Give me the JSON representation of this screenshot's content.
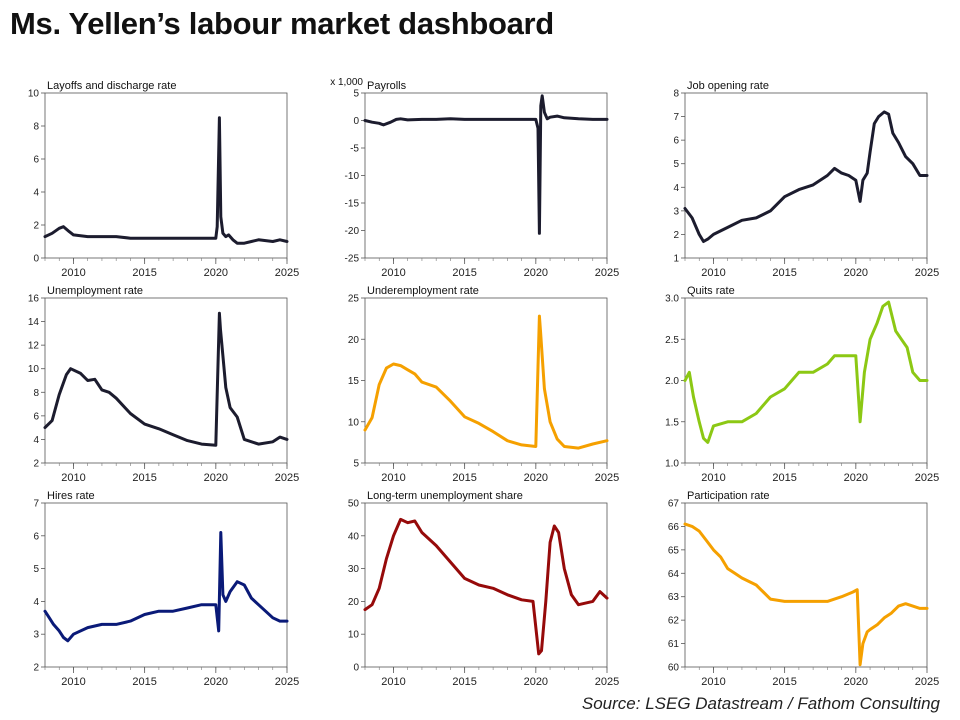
{
  "page": {
    "title": "Ms. Yellen’s labour market dashboard",
    "source": "Source: LSEG Datastream / Fathom Consulting"
  },
  "chart_data": [
    {
      "type": "line",
      "title": "Layoffs and discharge rate",
      "color": "#1c1c2e",
      "ylim": [
        0,
        10
      ],
      "yticks": [
        0,
        2,
        4,
        6,
        8,
        10
      ],
      "xlim": [
        2008.0,
        2025.0
      ],
      "xticks": [
        2010,
        2015,
        2020,
        2025
      ],
      "x": [
        2008.0,
        2008.5,
        2009.0,
        2009.3,
        2009.7,
        2010.0,
        2011.0,
        2012.0,
        2013.0,
        2014.0,
        2015.0,
        2016.0,
        2017.0,
        2018.0,
        2019.0,
        2020.0,
        2020.1,
        2020.25,
        2020.35,
        2020.5,
        2020.7,
        2020.9,
        2021.2,
        2021.5,
        2022.0,
        2022.5,
        2023.0,
        2024.0,
        2024.5,
        2025.0
      ],
      "y": [
        1.3,
        1.5,
        1.8,
        1.9,
        1.6,
        1.4,
        1.3,
        1.3,
        1.3,
        1.2,
        1.2,
        1.2,
        1.2,
        1.2,
        1.2,
        1.2,
        1.9,
        8.5,
        2.5,
        1.5,
        1.3,
        1.4,
        1.1,
        0.9,
        0.9,
        1.0,
        1.1,
        1.0,
        1.1,
        1.0
      ]
    },
    {
      "type": "line",
      "title": "Payrolls",
      "unit_label": "x 1,000",
      "color": "#1c1c2e",
      "ylim": [
        -25,
        5
      ],
      "yticks": [
        -25,
        -20,
        -15,
        -10,
        -5,
        0,
        5
      ],
      "xlim": [
        2008.0,
        2025.0
      ],
      "xticks": [
        2010,
        2015,
        2020,
        2025
      ],
      "x": [
        2008.0,
        2008.5,
        2009.0,
        2009.3,
        2009.8,
        2010.2,
        2010.5,
        2011.0,
        2012.0,
        2013.0,
        2014.0,
        2015.0,
        2016.0,
        2017.0,
        2018.0,
        2019.0,
        2020.0,
        2020.15,
        2020.25,
        2020.35,
        2020.45,
        2020.6,
        2020.8,
        2021.0,
        2021.5,
        2022.0,
        2023.0,
        2024.0,
        2025.0
      ],
      "y": [
        0.0,
        -0.3,
        -0.5,
        -0.8,
        -0.3,
        0.2,
        0.3,
        0.1,
        0.2,
        0.2,
        0.3,
        0.2,
        0.2,
        0.2,
        0.2,
        0.2,
        0.2,
        -1.4,
        -20.5,
        2.7,
        4.5,
        1.5,
        0.3,
        0.6,
        0.8,
        0.5,
        0.3,
        0.2,
        0.2
      ]
    },
    {
      "type": "line",
      "title": "Job opening rate",
      "color": "#1c1c2e",
      "ylim": [
        1,
        8
      ],
      "yticks": [
        1,
        2,
        3,
        4,
        5,
        6,
        7,
        8
      ],
      "xlim": [
        2008.0,
        2025.0
      ],
      "xticks": [
        2010,
        2015,
        2020,
        2025
      ],
      "x": [
        2008.0,
        2008.5,
        2009.0,
        2009.3,
        2009.6,
        2010.0,
        2011.0,
        2012.0,
        2013.0,
        2014.0,
        2014.5,
        2015.0,
        2016.0,
        2017.0,
        2018.0,
        2018.5,
        2019.0,
        2019.5,
        2020.0,
        2020.3,
        2020.5,
        2020.8,
        2021.0,
        2021.3,
        2021.6,
        2022.0,
        2022.3,
        2022.6,
        2023.0,
        2023.5,
        2024.0,
        2024.5,
        2025.0
      ],
      "y": [
        3.1,
        2.7,
        2.0,
        1.7,
        1.8,
        2.0,
        2.3,
        2.6,
        2.7,
        3.0,
        3.3,
        3.6,
        3.9,
        4.1,
        4.5,
        4.8,
        4.6,
        4.5,
        4.3,
        3.4,
        4.3,
        4.6,
        5.5,
        6.7,
        7.0,
        7.2,
        7.1,
        6.3,
        5.9,
        5.3,
        5.0,
        4.5,
        4.5
      ]
    },
    {
      "type": "line",
      "title": "Unemployment rate",
      "color": "#1c1c2e",
      "ylim": [
        2,
        16
      ],
      "yticks": [
        2,
        4,
        6,
        8,
        10,
        12,
        14,
        16
      ],
      "xlim": [
        2008.0,
        2025.0
      ],
      "xticks": [
        2010,
        2015,
        2020,
        2025
      ],
      "x": [
        2008.0,
        2008.5,
        2009.0,
        2009.5,
        2009.8,
        2010.5,
        2011.0,
        2011.5,
        2012.0,
        2012.5,
        2013.0,
        2014.0,
        2015.0,
        2016.0,
        2017.0,
        2018.0,
        2019.0,
        2020.0,
        2020.25,
        2020.33,
        2020.5,
        2020.7,
        2021.0,
        2021.5,
        2022.0,
        2023.0,
        2024.0,
        2024.5,
        2025.0
      ],
      "y": [
        5.0,
        5.6,
        7.8,
        9.5,
        10.0,
        9.6,
        9.0,
        9.1,
        8.2,
        8.0,
        7.5,
        6.2,
        5.3,
        4.9,
        4.4,
        3.9,
        3.6,
        3.5,
        14.7,
        13.3,
        11.1,
        8.4,
        6.7,
        5.9,
        4.0,
        3.6,
        3.8,
        4.2,
        4.0
      ]
    },
    {
      "type": "line",
      "title": "Underemployment rate",
      "color": "#f5a000",
      "ylim": [
        5,
        25
      ],
      "yticks": [
        5,
        10,
        15,
        20,
        25
      ],
      "xlim": [
        2008.0,
        2025.0
      ],
      "xticks": [
        2010,
        2015,
        2020,
        2025
      ],
      "x": [
        2008.0,
        2008.5,
        2009.0,
        2009.5,
        2010.0,
        2010.5,
        2011.0,
        2011.5,
        2012.0,
        2013.0,
        2014.0,
        2015.0,
        2016.0,
        2017.0,
        2018.0,
        2019.0,
        2020.0,
        2020.25,
        2020.33,
        2020.6,
        2021.0,
        2021.5,
        2022.0,
        2023.0,
        2024.0,
        2025.0
      ],
      "y": [
        9.0,
        10.5,
        14.5,
        16.5,
        17.0,
        16.8,
        16.3,
        15.8,
        14.8,
        14.2,
        12.5,
        10.6,
        9.8,
        8.8,
        7.7,
        7.2,
        7.0,
        22.8,
        21.0,
        14.0,
        10.0,
        7.9,
        7.0,
        6.8,
        7.3,
        7.7
      ]
    },
    {
      "type": "line",
      "title": "Quits rate",
      "color": "#8cc814",
      "ylim": [
        1.0,
        3.0
      ],
      "yticks": [
        1.0,
        1.5,
        2.0,
        2.5,
        3.0
      ],
      "xlim": [
        2008.0,
        2025.0
      ],
      "xticks": [
        2010,
        2015,
        2020,
        2025
      ],
      "x": [
        2008.0,
        2008.3,
        2008.6,
        2009.0,
        2009.3,
        2009.6,
        2010.0,
        2011.0,
        2012.0,
        2013.0,
        2014.0,
        2015.0,
        2015.5,
        2016.0,
        2017.0,
        2018.0,
        2018.5,
        2019.0,
        2020.0,
        2020.3,
        2020.6,
        2021.0,
        2021.5,
        2021.9,
        2022.3,
        2022.8,
        2023.2,
        2023.6,
        2024.0,
        2024.5,
        2025.0
      ],
      "y": [
        2.0,
        2.1,
        1.8,
        1.5,
        1.3,
        1.25,
        1.45,
        1.5,
        1.5,
        1.6,
        1.8,
        1.9,
        2.0,
        2.1,
        2.1,
        2.2,
        2.3,
        2.3,
        2.3,
        1.5,
        2.1,
        2.5,
        2.7,
        2.9,
        2.95,
        2.6,
        2.5,
        2.4,
        2.1,
        2.0,
        2.0
      ]
    },
    {
      "type": "line",
      "title": "Hires rate",
      "color": "#0a1a78",
      "ylim": [
        2,
        7
      ],
      "yticks": [
        2,
        3,
        4,
        5,
        6,
        7
      ],
      "xlim": [
        2008.0,
        2025.0
      ],
      "xticks": [
        2010,
        2015,
        2020,
        2025
      ],
      "x": [
        2008.0,
        2008.3,
        2008.6,
        2009.0,
        2009.3,
        2009.6,
        2010.0,
        2011.0,
        2012.0,
        2013.0,
        2014.0,
        2015.0,
        2016.0,
        2017.0,
        2018.0,
        2019.0,
        2020.0,
        2020.2,
        2020.35,
        2020.5,
        2020.7,
        2021.0,
        2021.5,
        2022.0,
        2022.5,
        2023.0,
        2023.5,
        2024.0,
        2024.5,
        2025.0
      ],
      "y": [
        3.7,
        3.5,
        3.3,
        3.1,
        2.9,
        2.8,
        3.0,
        3.2,
        3.3,
        3.3,
        3.4,
        3.6,
        3.7,
        3.7,
        3.8,
        3.9,
        3.9,
        3.1,
        6.1,
        4.2,
        4.0,
        4.3,
        4.6,
        4.5,
        4.1,
        3.9,
        3.7,
        3.5,
        3.4,
        3.4
      ]
    },
    {
      "type": "line",
      "title": "Long-term unemployment share",
      "color": "#960a0a",
      "ylim": [
        0,
        50
      ],
      "yticks": [
        0,
        10,
        20,
        30,
        40,
        50
      ],
      "xlim": [
        2008.0,
        2025.0
      ],
      "xticks": [
        2010,
        2015,
        2020,
        2025
      ],
      "x": [
        2008.0,
        2008.5,
        2009.0,
        2009.5,
        2010.0,
        2010.5,
        2011.0,
        2011.5,
        2012.0,
        2013.0,
        2014.0,
        2015.0,
        2016.0,
        2017.0,
        2018.0,
        2019.0,
        2019.8,
        2020.2,
        2020.4,
        2020.7,
        2021.0,
        2021.3,
        2021.6,
        2022.0,
        2022.5,
        2023.0,
        2024.0,
        2024.5,
        2025.0
      ],
      "y": [
        17.5,
        19.0,
        24.0,
        33.0,
        40.0,
        45.0,
        44.0,
        44.5,
        41.0,
        37.0,
        32.0,
        27.0,
        25.0,
        24.0,
        22.0,
        20.5,
        20.0,
        4.0,
        5.0,
        20.0,
        38.0,
        43.0,
        41.0,
        30.0,
        22.0,
        19.0,
        20.0,
        23.0,
        21.0
      ]
    },
    {
      "type": "line",
      "title": "Participation rate",
      "color": "#f5a000",
      "ylim": [
        60,
        67
      ],
      "yticks": [
        60,
        61,
        62,
        63,
        64,
        65,
        66,
        67
      ],
      "xlim": [
        2008.0,
        2025.0
      ],
      "xticks": [
        2010,
        2015,
        2020,
        2025
      ],
      "x": [
        2008.0,
        2008.5,
        2009.0,
        2009.5,
        2010.0,
        2010.5,
        2011.0,
        2011.5,
        2012.0,
        2013.0,
        2013.5,
        2014.0,
        2015.0,
        2016.0,
        2017.0,
        2018.0,
        2019.0,
        2019.8,
        2020.1,
        2020.3,
        2020.5,
        2020.8,
        2021.0,
        2021.5,
        2022.0,
        2022.5,
        2023.0,
        2023.5,
        2024.0,
        2024.5,
        2025.0
      ],
      "y": [
        66.1,
        66.0,
        65.8,
        65.4,
        65.0,
        64.7,
        64.2,
        64.0,
        63.8,
        63.5,
        63.2,
        62.9,
        62.8,
        62.8,
        62.8,
        62.8,
        63.0,
        63.2,
        63.3,
        60.1,
        61.0,
        61.5,
        61.6,
        61.8,
        62.1,
        62.3,
        62.6,
        62.7,
        62.6,
        62.5,
        62.5
      ]
    }
  ]
}
